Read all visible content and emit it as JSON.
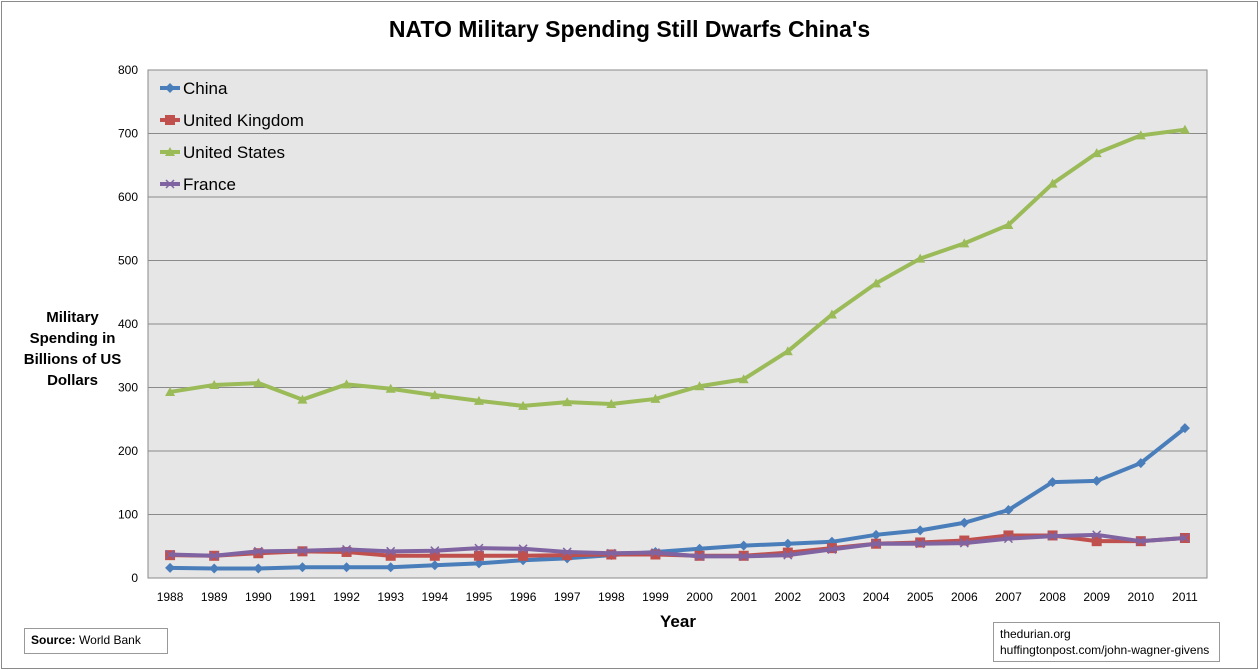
{
  "chart_data": {
    "type": "line",
    "title": "NATO Military Spending Still Dwarfs China's",
    "xlabel": "Year",
    "ylabel": "Military Spending in Billions of US Dollars",
    "ylim": [
      0,
      800
    ],
    "yticks": [
      0,
      100,
      200,
      300,
      400,
      500,
      600,
      700,
      800
    ],
    "grid": true,
    "legend_position": "top-left",
    "background": "#e6e6e6",
    "x": [
      "1988",
      "1989",
      "1990",
      "1991",
      "1992",
      "1993",
      "1994",
      "1995",
      "1996",
      "1997",
      "1998",
      "1999",
      "2000",
      "2001",
      "2002",
      "2003",
      "2004",
      "2005",
      "2006",
      "2007",
      "2008",
      "2009",
      "2010",
      "2011"
    ],
    "series": [
      {
        "name": "China",
        "color": "#4a7ebb",
        "marker": "diamond",
        "values": [
          16,
          15,
          15,
          17,
          17,
          17,
          20,
          23,
          28,
          31,
          36,
          41,
          46,
          51,
          54,
          57,
          68,
          75,
          87,
          107,
          151,
          153,
          181,
          236
        ]
      },
      {
        "name": "United Kingdom",
        "color": "#c0504d",
        "marker": "square",
        "values": [
          36,
          35,
          39,
          42,
          41,
          35,
          35,
          35,
          35,
          36,
          37,
          37,
          35,
          35,
          40,
          47,
          54,
          56,
          59,
          67,
          67,
          58,
          58,
          63
        ]
      },
      {
        "name": "United States",
        "color": "#9bbb59",
        "marker": "triangle",
        "values": [
          293,
          304,
          307,
          281,
          305,
          298,
          288,
          279,
          271,
          277,
          274,
          282,
          302,
          313,
          357,
          415,
          464,
          503,
          527,
          556,
          621,
          669,
          697,
          706
        ]
      },
      {
        "name": "France",
        "color": "#8064a2",
        "marker": "x",
        "values": [
          37,
          35,
          42,
          43,
          45,
          42,
          43,
          47,
          46,
          41,
          39,
          40,
          34,
          34,
          36,
          45,
          54,
          54,
          55,
          62,
          66,
          68,
          58,
          63
        ]
      }
    ]
  },
  "source": {
    "label": "Source:",
    "value": "World Bank"
  },
  "credit": {
    "line1": "thedurian.org",
    "line2": "huffingtonpost.com/john-wagner-givens"
  }
}
